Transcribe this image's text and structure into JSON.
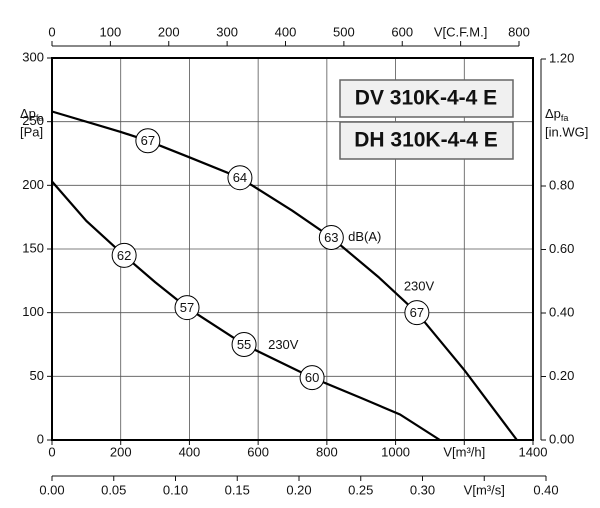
{
  "chart_data": {
    "type": "line",
    "titles": [
      "DV 310K-4-4 E",
      "DH 310K-4-4 E"
    ],
    "xlim": [
      0,
      1400
    ],
    "xticks": [
      0,
      200,
      400,
      600,
      800,
      1000,
      {
        "value": 1200,
        "label": "V[m³/h]"
      },
      1400
    ],
    "x2lim": [
      0,
      0.4
    ],
    "x2ticks": [
      {
        "value": 0,
        "label": "0.00"
      },
      0.05,
      {
        "value": 0.1,
        "label": "0.10"
      },
      0.15,
      {
        "value": 0.2,
        "label": "0.20"
      },
      0.25,
      {
        "value": 0.3,
        "label": "0.30"
      },
      {
        "value": 0.35,
        "label": "V[m³/s]"
      },
      {
        "value": 0.4,
        "label": "0.40"
      }
    ],
    "x3lim": [
      0,
      800
    ],
    "x3ticks": [
      0,
      100,
      200,
      300,
      400,
      500,
      600,
      {
        "value": 700,
        "label": "V[C.F.M.]"
      },
      800
    ],
    "ylim": [
      0,
      300
    ],
    "yticks": [
      0,
      50,
      100,
      150,
      200,
      250,
      300
    ],
    "ylabel": {
      "main": "Δp",
      "sub": "fa",
      "unit": "[Pa]"
    },
    "y2lim": [
      0,
      1.2
    ],
    "y2ticks": [
      {
        "value": 0,
        "label": "0.00"
      },
      {
        "value": 0.2,
        "label": "0.20"
      },
      {
        "value": 0.4,
        "label": "0.40"
      },
      {
        "value": 0.6,
        "label": "0.60"
      },
      {
        "value": 0.8,
        "label": "0.80"
      },
      {
        "value": 1.2,
        "label": "1.20"
      }
    ],
    "y2label": {
      "main": "Δp",
      "sub": "fa",
      "unit": "[in.WG]"
    },
    "grid": true,
    "series": [
      {
        "color": "#000000",
        "x": [
          0,
          200,
          279,
          400,
          547,
          700,
          813,
          950,
          1062,
          1200,
          1353
        ],
        "values": [
          258,
          242,
          235,
          222,
          206,
          180,
          159,
          128,
          100,
          55,
          0
        ],
        "points": [
          {
            "x": 279,
            "y": 235,
            "db": 67
          },
          {
            "x": 547,
            "y": 206,
            "db": 64
          },
          {
            "x": 813,
            "y": 159,
            "db": 63
          },
          {
            "x": 1062,
            "y": 100,
            "db": 67
          }
        ]
      },
      {
        "color": "#000000",
        "x": [
          0,
          100,
          210,
          300,
          393,
          559,
          650,
          757,
          900,
          1013,
          1129
        ],
        "values": [
          203,
          172,
          145,
          124,
          104,
          75,
          63,
          49,
          33,
          20,
          0
        ],
        "points": [
          {
            "x": 210,
            "y": 145,
            "db": 62
          },
          {
            "x": 393,
            "y": 104,
            "db": 57
          },
          {
            "x": 559,
            "y": 75,
            "db": 55
          },
          {
            "x": 757,
            "y": 49,
            "db": 60
          }
        ]
      }
    ],
    "annotations": [
      {
        "text": "dB(A)",
        "x": 862,
        "y": 159
      },
      {
        "text": "230V",
        "x": 1024,
        "y": 120
      },
      {
        "text": "230V",
        "x": 629,
        "y": 74
      }
    ]
  }
}
